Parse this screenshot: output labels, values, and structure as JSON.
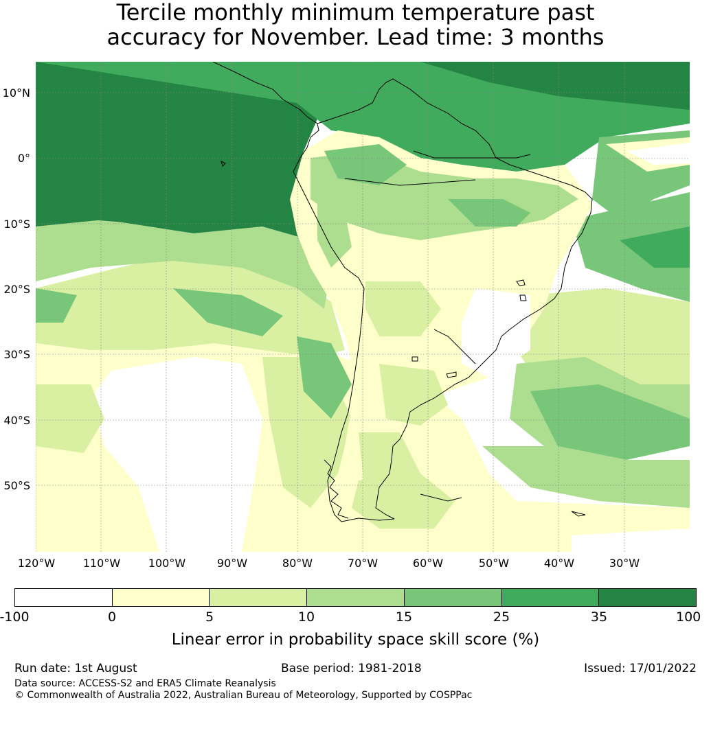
{
  "title_line1": "Tercile monthly minimum temperature past",
  "title_line2": "accuracy for November. Lead time: 3 months",
  "lat_labels": [
    "10°N",
    "0°",
    "10°S",
    "20°S",
    "30°S",
    "40°S",
    "50°S"
  ],
  "lon_labels": [
    "120°W",
    "110°W",
    "100°W",
    "90°W",
    "80°W",
    "70°W",
    "60°W",
    "50°W",
    "40°W",
    "30°W"
  ],
  "colorbar": {
    "ticks": [
      "-100",
      "0",
      "5",
      "10",
      "15",
      "25",
      "35",
      "100"
    ],
    "colors": [
      "#ffffff",
      "#ffffcc",
      "#d9f0a3",
      "#addd8e",
      "#78c679",
      "#41ab5d",
      "#238443"
    ],
    "label": "Linear error in probability space skill score (%)"
  },
  "footer": {
    "run_date": "Run date: 1st August",
    "base_period": "Base period: 1981-2018",
    "issued": "Issued: 17/01/2022",
    "data_source": "Data source: ACCESS-S2 and ERA5 Climate Reanalysis",
    "copyright": "© Commonwealth of Australia 2022, Australian Bureau of Meteorology, Supported by COSPPac"
  }
}
